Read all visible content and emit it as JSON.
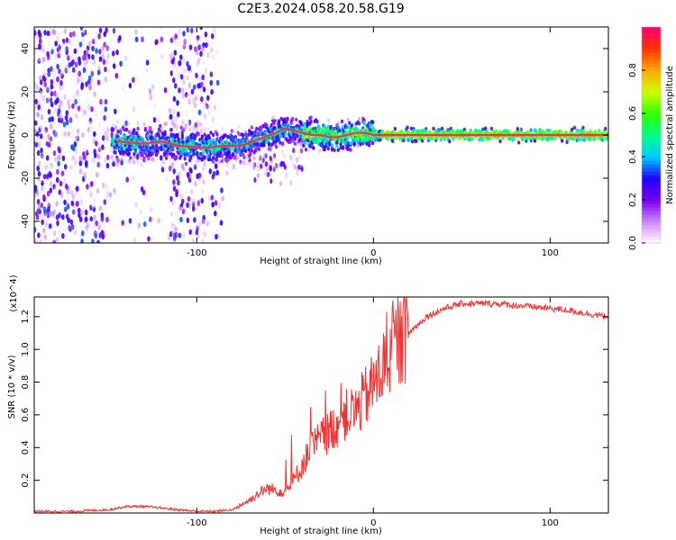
{
  "title": "C2E3.2024.058.20.58.G19",
  "chart_data": [
    {
      "type": "heatmap",
      "xlabel": "Height of straight line (km)",
      "ylabel": "Frequency (Hz)",
      "xlim": [
        -192,
        133
      ],
      "ylim": [
        -50,
        50
      ],
      "xticks": [
        -100,
        0,
        100
      ],
      "yticks": [
        -40,
        -20,
        0,
        20,
        40
      ],
      "grid": false,
      "colorbar": {
        "label": "Normalized spectral amplitude",
        "range": [
          0,
          1
        ],
        "ticks": [
          "0.0",
          "0.2",
          "0.4",
          "0.6",
          "0.8"
        ],
        "colors": [
          "#ffffff",
          "#cc88ff",
          "#7700ee",
          "#2200ff",
          "#00ccff",
          "#00ff88",
          "#33ff00",
          "#ccff00",
          "#ffaa00",
          "#ff3300",
          "#ff0077"
        ]
      },
      "ridge": {
        "x": [
          -145,
          -130,
          -120,
          -110,
          -95,
          -85,
          -75,
          -65,
          -55,
          -50,
          -45,
          -40,
          -35,
          -30,
          -25,
          -20,
          -15,
          -10,
          -5,
          0,
          10,
          50,
          100,
          133
        ],
        "y": [
          -3,
          -4,
          -3,
          -5,
          -6,
          -5,
          -5,
          -2,
          1,
          3,
          2,
          1,
          0,
          0,
          -1,
          -1,
          0,
          1,
          1,
          0,
          0,
          0,
          0,
          0
        ]
      }
    },
    {
      "type": "line",
      "xlabel": "Height of straight line (km)",
      "ylabel": "SNR (10 * v/v)",
      "y_multiplier": "(x10^4)",
      "xlim": [
        -192,
        133
      ],
      "ylim": [
        0,
        1.32
      ],
      "xticks": [
        -100,
        0,
        100
      ],
      "yticks": [
        "0.2",
        "0.4",
        "0.6",
        "0.8",
        "1.0",
        "1.2"
      ],
      "color": "#ee3333",
      "grid": false,
      "series": [
        {
          "x": [
            -192,
            -170,
            -150,
            -140,
            -130,
            -120,
            -110,
            -100,
            -90,
            -80,
            -75,
            -70,
            -65,
            -60,
            -55,
            -50,
            -45,
            -40,
            -35,
            -30,
            -25,
            -20,
            -15,
            -10,
            -5,
            0,
            5,
            10,
            15,
            20,
            25,
            30,
            40,
            50,
            60,
            70,
            80,
            90,
            100,
            110,
            120,
            133
          ],
          "y": [
            0.01,
            0.01,
            0.02,
            0.04,
            0.04,
            0.03,
            0.02,
            0.01,
            0.01,
            0.02,
            0.05,
            0.08,
            0.12,
            0.15,
            0.14,
            0.13,
            0.2,
            0.3,
            0.4,
            0.45,
            0.5,
            0.55,
            0.6,
            0.62,
            0.7,
            0.78,
            0.88,
            0.98,
            1.05,
            1.1,
            1.15,
            1.2,
            1.25,
            1.28,
            1.28,
            1.28,
            1.27,
            1.26,
            1.25,
            1.24,
            1.22,
            1.2
          ]
        }
      ]
    }
  ]
}
